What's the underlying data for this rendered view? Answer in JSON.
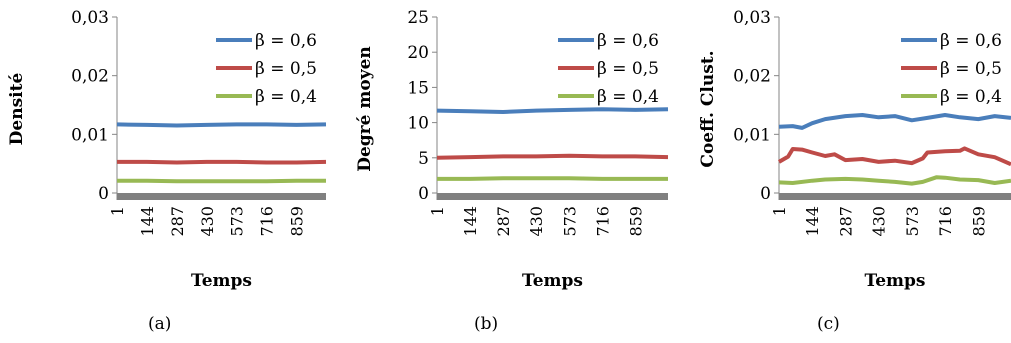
{
  "chart_data": [
    {
      "type": "line",
      "panel_label": "(a)",
      "xlabel": "Temps",
      "ylabel": "Densité",
      "x_tick_labels": [
        "1",
        "144",
        "287",
        "430",
        "573",
        "716",
        "859"
      ],
      "y_tick_labels": [
        "0",
        "0,01",
        "0,02",
        "0,03"
      ],
      "ylim": [
        0,
        0.03
      ],
      "xlim": [
        1,
        1000
      ],
      "legend_position": "top-right",
      "series": [
        {
          "name": "β = 0,6",
          "color": "#4a7ebb",
          "x": [
            1,
            144,
            287,
            430,
            573,
            716,
            859,
            1000
          ],
          "values": [
            0.0117,
            0.0116,
            0.0115,
            0.0116,
            0.0117,
            0.0117,
            0.0116,
            0.0117
          ]
        },
        {
          "name": "β = 0,5",
          "color": "#be4b48",
          "x": [
            1,
            144,
            287,
            430,
            573,
            716,
            859,
            1000
          ],
          "values": [
            0.0053,
            0.0053,
            0.0052,
            0.0053,
            0.0053,
            0.0052,
            0.0052,
            0.0053
          ]
        },
        {
          "name": "β = 0,4",
          "color": "#98b954",
          "x": [
            1,
            144,
            287,
            430,
            573,
            716,
            859,
            1000
          ],
          "values": [
            0.0021,
            0.0021,
            0.002,
            0.002,
            0.002,
            0.002,
            0.0021,
            0.0021
          ]
        }
      ]
    },
    {
      "type": "line",
      "panel_label": "(b)",
      "xlabel": "Temps",
      "ylabel": "Degré moyen",
      "x_tick_labels": [
        "1",
        "144",
        "287",
        "430",
        "573",
        "716",
        "859"
      ],
      "y_tick_labels": [
        "0",
        "5",
        "10",
        "15",
        "20",
        "25"
      ],
      "ylim": [
        0,
        25
      ],
      "xlim": [
        1,
        1000
      ],
      "legend_position": "top-right",
      "series": [
        {
          "name": "β = 0,6",
          "color": "#4a7ebb",
          "x": [
            1,
            144,
            287,
            430,
            573,
            716,
            859,
            1000
          ],
          "values": [
            11.7,
            11.6,
            11.5,
            11.7,
            11.8,
            11.9,
            11.8,
            11.9
          ]
        },
        {
          "name": "β = 0,5",
          "color": "#be4b48",
          "x": [
            1,
            144,
            287,
            430,
            573,
            716,
            859,
            1000
          ],
          "values": [
            5.0,
            5.1,
            5.2,
            5.2,
            5.3,
            5.2,
            5.2,
            5.1
          ]
        },
        {
          "name": "β = 0,4",
          "color": "#98b954",
          "x": [
            1,
            144,
            287,
            430,
            573,
            716,
            859,
            1000
          ],
          "values": [
            2.0,
            2.0,
            2.1,
            2.1,
            2.1,
            2.0,
            2.0,
            2.0
          ]
        }
      ]
    },
    {
      "type": "line",
      "panel_label": "(c)",
      "xlabel": "Temps",
      "ylabel": "Coeff. Clust.",
      "x_tick_labels": [
        "1",
        "144",
        "287",
        "430",
        "573",
        "716",
        "859"
      ],
      "y_tick_labels": [
        "0",
        "0,01",
        "0,02",
        "0,03"
      ],
      "ylim": [
        0,
        0.03
      ],
      "xlim": [
        1,
        1000
      ],
      "legend_position": "top-right",
      "series": [
        {
          "name": "β = 0,6",
          "color": "#4a7ebb",
          "x": [
            1,
            60,
            100,
            144,
            200,
            287,
            360,
            430,
            500,
            573,
            640,
            716,
            780,
            859,
            930,
            1000
          ],
          "values": [
            0.0113,
            0.0114,
            0.0111,
            0.0119,
            0.0126,
            0.0131,
            0.0133,
            0.0129,
            0.0131,
            0.0124,
            0.0128,
            0.0133,
            0.0129,
            0.0126,
            0.0131,
            0.0128
          ]
        },
        {
          "name": "β = 0,5",
          "color": "#be4b48",
          "x": [
            1,
            40,
            60,
            100,
            144,
            200,
            240,
            287,
            360,
            430,
            500,
            573,
            620,
            640,
            716,
            780,
            800,
            859,
            930,
            1000
          ],
          "values": [
            0.0053,
            0.0062,
            0.0075,
            0.0074,
            0.0069,
            0.0063,
            0.0066,
            0.0056,
            0.0058,
            0.0053,
            0.0055,
            0.0051,
            0.0059,
            0.0069,
            0.0071,
            0.0072,
            0.0076,
            0.0066,
            0.0061,
            0.0049
          ]
        },
        {
          "name": "β = 0,4",
          "color": "#98b954",
          "x": [
            1,
            60,
            144,
            200,
            287,
            360,
            430,
            500,
            573,
            620,
            680,
            716,
            780,
            859,
            930,
            1000
          ],
          "values": [
            0.0018,
            0.0017,
            0.0021,
            0.0023,
            0.0024,
            0.0023,
            0.0021,
            0.0019,
            0.0016,
            0.0019,
            0.0027,
            0.0026,
            0.0023,
            0.0022,
            0.0017,
            0.0021
          ]
        }
      ]
    }
  ]
}
